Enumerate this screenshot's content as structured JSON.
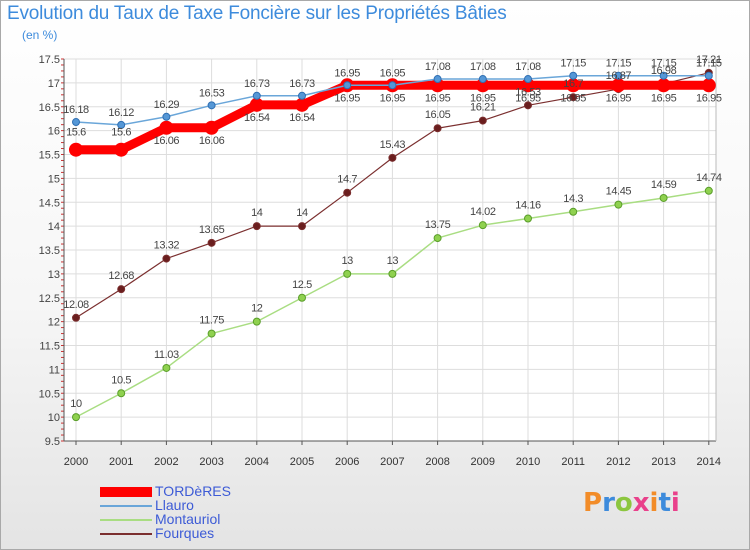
{
  "title": "Evolution du Taux de Taxe Foncière sur les Propriétés Bâties",
  "subtitle": "(en %)",
  "brand": "Proxiti",
  "brand_colors": [
    "#f28c28",
    "#3d8bdc",
    "#8cc63f",
    "#e9418b",
    "#f28c28",
    "#3d8bdc",
    "#e9418b"
  ],
  "chart_data": {
    "type": "line",
    "title": "Evolution du Taux de Taxe Foncière sur les Propriétés Bâties",
    "ylabel": "(en %)",
    "xlabel": "",
    "ylim": [
      9.5,
      17.5
    ],
    "yticks": [
      "9.5",
      "10",
      "10.5",
      "11",
      "11.5",
      "12",
      "12.5",
      "13",
      "13.5",
      "14",
      "14.5",
      "15",
      "15.5",
      "16",
      "16.5",
      "17",
      "17.5"
    ],
    "categories": [
      "2000",
      "2001",
      "2002",
      "2003",
      "2004",
      "2005",
      "2006",
      "2007",
      "2008",
      "2009",
      "2010",
      "2011",
      "2012",
      "2013",
      "2014"
    ],
    "grid": true,
    "legend_position": "bottom-left",
    "series": [
      {
        "name": "TORDèRES",
        "color": "#ff0000",
        "values": [
          15.6,
          15.6,
          16.06,
          16.06,
          16.54,
          16.54,
          16.95,
          16.95,
          16.95,
          16.95,
          16.95,
          16.95,
          16.95,
          16.95,
          16.95
        ],
        "labels": [
          "15.6",
          "15.6",
          "16.06",
          "16.06",
          "16.54",
          "16.54",
          "16.95",
          "16.95",
          "16.95",
          "16.95",
          "16.95",
          "16.95",
          "16.95",
          "16.95",
          "16.95"
        ]
      },
      {
        "name": "Llauro",
        "color": "#6aa6d9",
        "values": [
          16.18,
          16.12,
          16.29,
          16.53,
          16.73,
          16.73,
          16.95,
          16.95,
          17.08,
          17.08,
          17.08,
          17.15,
          17.15,
          17.15,
          17.15
        ],
        "labels": [
          "16.18",
          "16.12",
          "16.29",
          "16.53",
          "16.73",
          "16.73",
          "16.95",
          "16.95",
          "17.08",
          "17.08",
          "17.08",
          "17.15",
          "17.15",
          "17.15",
          "17.15"
        ]
      },
      {
        "name": "Montauriol",
        "color": "#a9dd82",
        "values": [
          10,
          10.5,
          11.03,
          11.75,
          12,
          12.5,
          13,
          13,
          13.75,
          14.02,
          14.16,
          14.3,
          14.45,
          14.59,
          14.74
        ],
        "labels": [
          "10",
          "10.5",
          "11.03",
          "11.75",
          "12",
          "12.5",
          "13",
          "13",
          "13.75",
          "14.02",
          "14.16",
          "14.3",
          "14.45",
          "14.59",
          "14.74"
        ]
      },
      {
        "name": "Fourques",
        "color": "#7b2f2f",
        "values": [
          12.08,
          12.68,
          13.32,
          13.65,
          14,
          14,
          14.7,
          15.43,
          16.05,
          16.21,
          16.53,
          16.7,
          16.87,
          16.98,
          17.21
        ],
        "labels": [
          "12.08",
          "12.68",
          "13.32",
          "13.65",
          "14",
          "14",
          "14.7",
          "15.43",
          "16.05",
          "16.21",
          "16.53",
          "16.7",
          "16.87",
          "16.98",
          "17.21"
        ]
      }
    ]
  }
}
